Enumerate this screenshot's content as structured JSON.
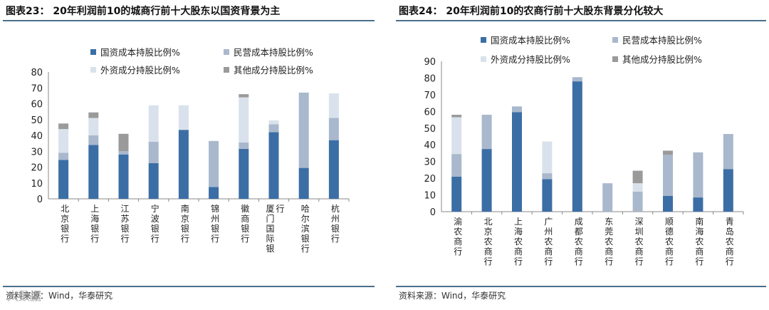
{
  "colors": {
    "state_owned": "#3b6ea5",
    "private": "#a9b8cc",
    "foreign": "#d9e2ec",
    "other": "#9a9a9a",
    "rule": "#4a6f8a"
  },
  "watermark": "大数据",
  "chart_data": [
    {
      "type": "bar",
      "stacked": true,
      "title": "图表23： 20年利润前10的城商行前十大股东以国资背景为主",
      "source": "资料来源：Wind，华泰研究",
      "ylim": [
        0,
        80
      ],
      "yticks": [
        0,
        10,
        20,
        30,
        40,
        50,
        60,
        70,
        80
      ],
      "xlabel": "",
      "ylabel": "",
      "legend_position": "top-left",
      "categories": [
        "北京银行",
        "上海银行",
        "江苏银行",
        "宁波银行",
        "南京银行",
        "锦州银行",
        "徽商银行",
        "厦门国际银行",
        "哈尔滨银行",
        "杭州银行"
      ],
      "series": [
        {
          "name": "国资成本持股比例%",
          "color_key": "state_owned",
          "values": [
            24.5,
            34,
            28,
            22.5,
            43.5,
            7.5,
            31.5,
            42,
            19.5,
            37
          ]
        },
        {
          "name": "民营成本持股比例%",
          "color_key": "private",
          "values": [
            4.5,
            6,
            2,
            13.5,
            0,
            29,
            4,
            5,
            47.5,
            14
          ]
        },
        {
          "name": "外资成分持股比例%",
          "color_key": "foreign",
          "values": [
            15,
            11,
            0,
            23,
            15.5,
            0,
            28.5,
            2.5,
            0,
            15.5
          ]
        },
        {
          "name": "其他成分持股比例%",
          "color_key": "other",
          "values": [
            3.5,
            3.5,
            11,
            0,
            0,
            0,
            2,
            0,
            0,
            0
          ]
        }
      ]
    },
    {
      "type": "bar",
      "stacked": true,
      "title": "图表24： 20年利润前10的农商行前十大股东背景分化较大",
      "source": "资料来源：Wind，华泰研究",
      "ylim": [
        0,
        90
      ],
      "yticks": [
        0,
        10,
        20,
        30,
        40,
        50,
        60,
        70,
        80,
        90
      ],
      "xlabel": "",
      "ylabel": "",
      "legend_position": "top",
      "categories": [
        "渝农商行",
        "北京农商行",
        "上海农商行",
        "广州农商行",
        "成都农商行",
        "东莞农商行",
        "深圳农商行",
        "顺德农商行",
        "南海农商行",
        "青岛农商行"
      ],
      "series": [
        {
          "name": "国资成本持股比例%",
          "color_key": "state_owned",
          "values": [
            21,
            37.5,
            59.5,
            19.5,
            78,
            0,
            0,
            9.5,
            8.5,
            25.5
          ]
        },
        {
          "name": "民营成本持股比例%",
          "color_key": "private",
          "values": [
            13.5,
            20.5,
            3.5,
            3.5,
            2.5,
            17,
            12,
            24.5,
            27,
            21
          ]
        },
        {
          "name": "外资成分持股比例%",
          "color_key": "foreign",
          "values": [
            22,
            0,
            0,
            19,
            0,
            0,
            5,
            0,
            0,
            0
          ]
        },
        {
          "name": "其他成分持股比例%",
          "color_key": "other",
          "values": [
            1.5,
            0,
            0,
            0,
            0,
            0,
            7.5,
            2.5,
            0,
            0
          ]
        }
      ]
    }
  ]
}
